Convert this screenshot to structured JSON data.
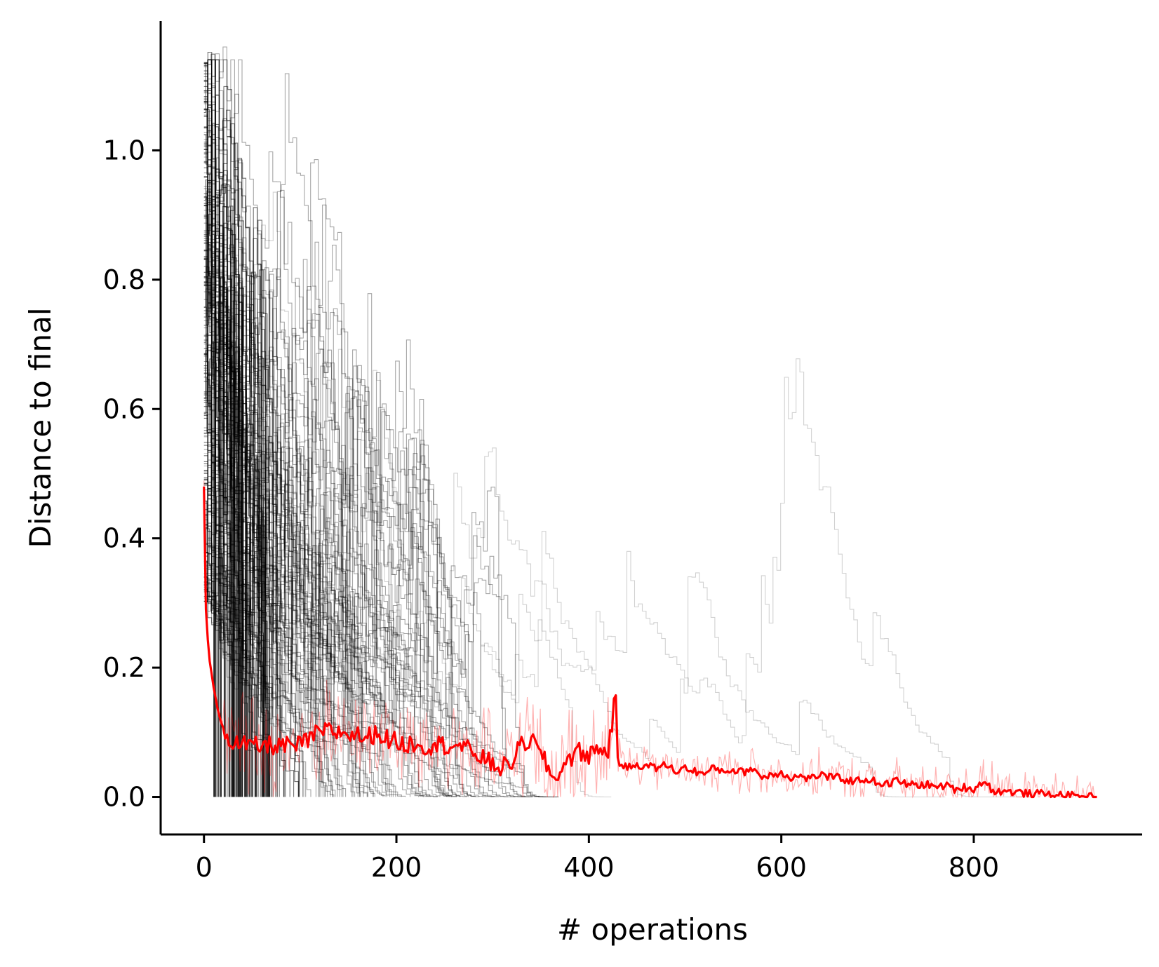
{
  "chart_data": {
    "type": "line",
    "title": "",
    "xlabel": "# operations",
    "ylabel": "Distance to final",
    "xlim": [
      -45,
      975
    ],
    "ylim": [
      -0.058,
      1.2
    ],
    "xticks": [
      0,
      200,
      400,
      600,
      800
    ],
    "xtick_labels": [
      "0",
      "200",
      "400",
      "600",
      "800"
    ],
    "yticks": [
      0.0,
      0.2,
      0.4,
      0.6,
      0.8,
      1.0
    ],
    "ytick_labels": [
      "0.0",
      "0.2",
      "0.4",
      "0.6",
      "0.8",
      "1.0"
    ],
    "grid": false,
    "legend": "none",
    "colors": {
      "individual_runs": "#000000",
      "mean_band": "#ff0000",
      "mean": "#ff0000"
    },
    "series": [
      {
        "role": "mean",
        "x": [
          0,
          2,
          5,
          10,
          15,
          20,
          25,
          30,
          40,
          50,
          60,
          70,
          80,
          90,
          100,
          110,
          120,
          130,
          140,
          150,
          160,
          170,
          180,
          190,
          200,
          210,
          220,
          230,
          240,
          250,
          260,
          270,
          280,
          290,
          300,
          310,
          320,
          330,
          340,
          350,
          360,
          365,
          370,
          380,
          390,
          400,
          410,
          420,
          428,
          430,
          440,
          450,
          460,
          470,
          480,
          490,
          500,
          510,
          520,
          530,
          540,
          550,
          560,
          570,
          580,
          590,
          600,
          610,
          620,
          630,
          640,
          650,
          660,
          670,
          680,
          690,
          700,
          710,
          720,
          730,
          740,
          750,
          760,
          770,
          780,
          790,
          800,
          810,
          820,
          830,
          840,
          850,
          860,
          870,
          880,
          890,
          900,
          910,
          920,
          928
        ],
        "y": [
          0.48,
          0.29,
          0.22,
          0.17,
          0.13,
          0.105,
          0.092,
          0.085,
          0.08,
          0.078,
          0.078,
          0.08,
          0.08,
          0.078,
          0.08,
          0.09,
          0.1,
          0.102,
          0.1,
          0.098,
          0.095,
          0.092,
          0.1,
          0.09,
          0.085,
          0.08,
          0.085,
          0.078,
          0.082,
          0.08,
          0.082,
          0.075,
          0.07,
          0.06,
          0.05,
          0.045,
          0.055,
          0.08,
          0.09,
          0.065,
          0.04,
          0.02,
          0.045,
          0.06,
          0.07,
          0.065,
          0.075,
          0.07,
          0.16,
          0.055,
          0.045,
          0.05,
          0.048,
          0.045,
          0.05,
          0.04,
          0.045,
          0.04,
          0.035,
          0.045,
          0.04,
          0.042,
          0.038,
          0.045,
          0.03,
          0.035,
          0.038,
          0.03,
          0.032,
          0.028,
          0.035,
          0.03,
          0.03,
          0.025,
          0.025,
          0.028,
          0.022,
          0.02,
          0.025,
          0.02,
          0.018,
          0.02,
          0.015,
          0.018,
          0.012,
          0.015,
          0.012,
          0.025,
          0.01,
          0.008,
          0.008,
          0.006,
          0.005,
          0.005,
          0.004,
          0.003,
          0.002,
          0.001,
          0.0005,
          0.0
        ]
      },
      {
        "role": "individual_runs",
        "count_shown": "many",
        "x_extent": [
          0,
          930
        ],
        "y_max": 1.14
      }
    ]
  }
}
